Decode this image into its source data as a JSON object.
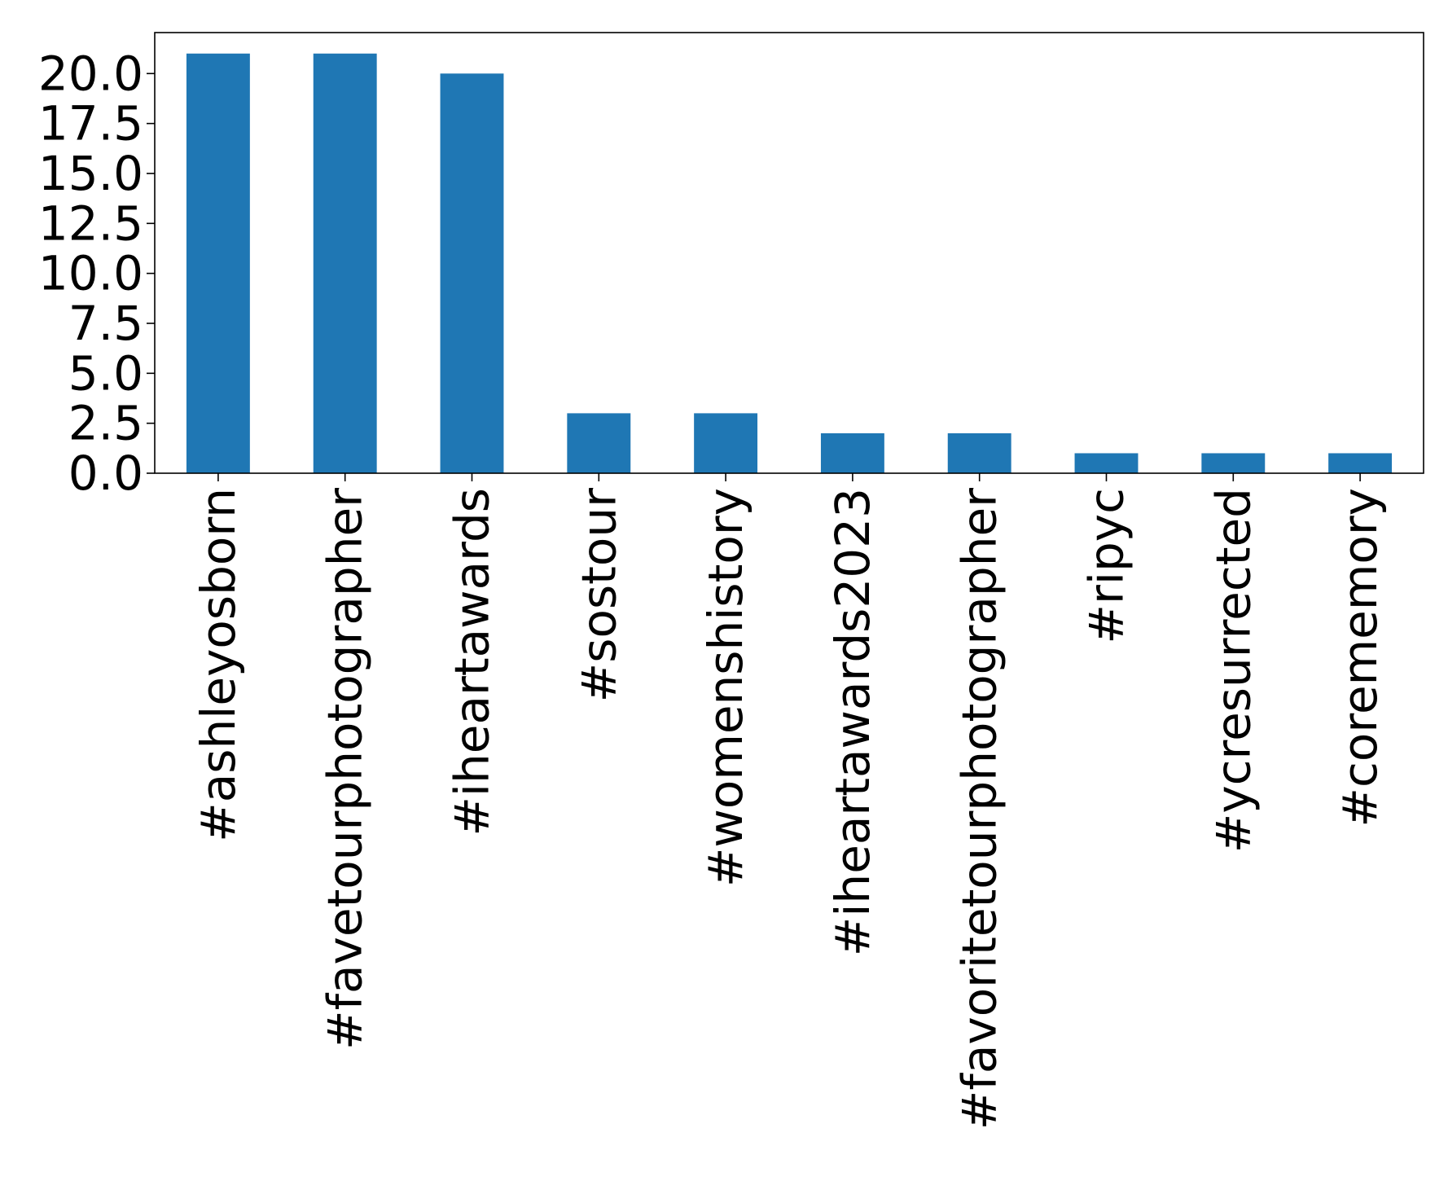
{
  "chart_data": {
    "type": "bar",
    "categories": [
      "#ashleyosborn",
      "#favetourphotographer",
      "#iheartawards",
      "#sostour",
      "#womenshistory",
      "#iheartawards2023",
      "#favoritetourphotographer",
      "#ripyc",
      "#ycresurrected",
      "#corememory"
    ],
    "values": [
      21,
      21,
      20,
      3,
      3,
      2,
      2,
      1,
      1,
      1
    ],
    "yticks": [
      "0.0",
      "2.5",
      "5.0",
      "7.5",
      "10.0",
      "12.5",
      "15.0",
      "17.5",
      "20.0"
    ],
    "ylim": [
      0,
      22.05
    ],
    "grid": false,
    "legend": "none",
    "bar_color": "#1f77b4"
  }
}
